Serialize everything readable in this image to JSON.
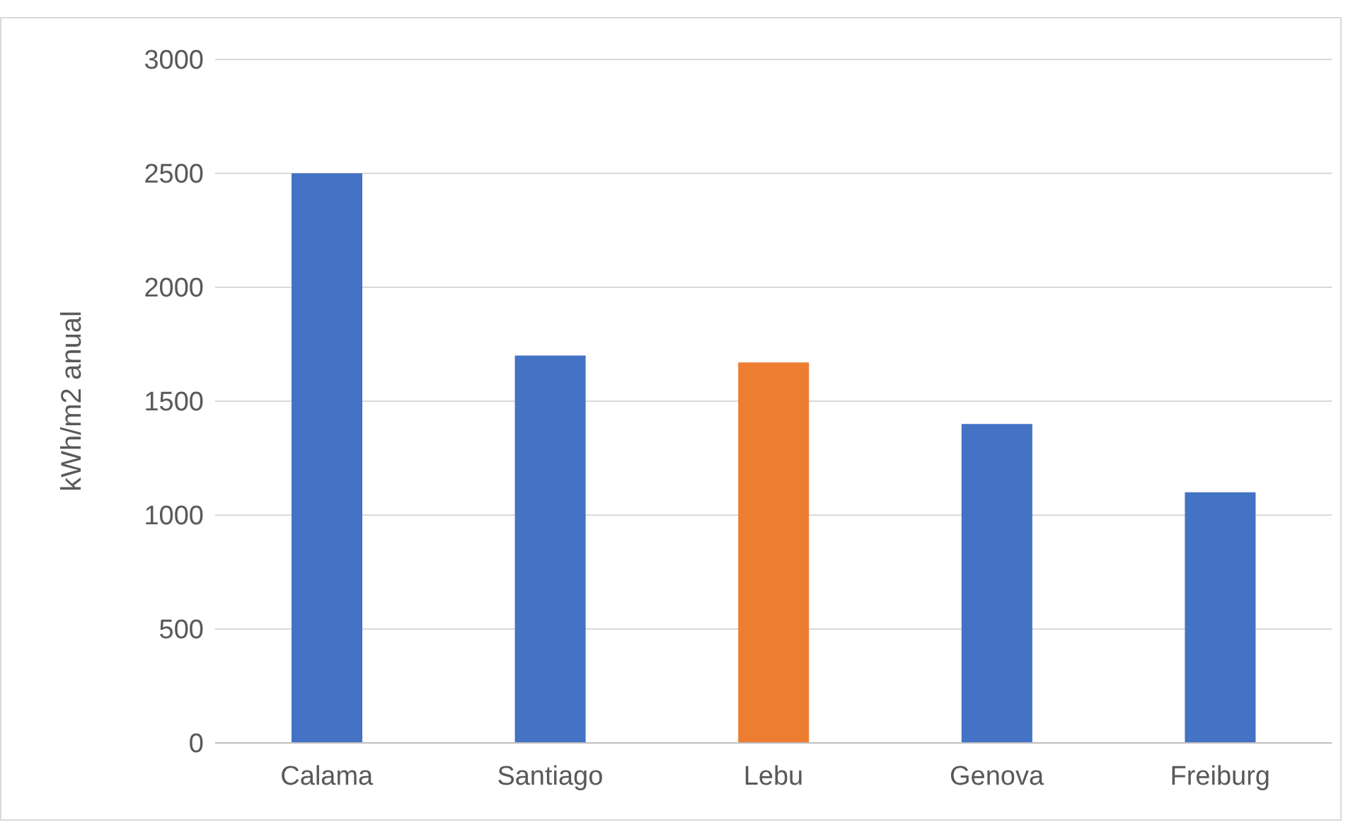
{
  "chart_data": {
    "type": "bar",
    "ylabel": "kWh/m2 anual",
    "categories": [
      "Calama",
      "Santiago",
      "Lebu",
      "Genova",
      "Freiburg"
    ],
    "values": [
      2500,
      1700,
      1670,
      1400,
      1100
    ],
    "colors": [
      "#4472c4",
      "#4472c4",
      "#ed7d31",
      "#4472c4",
      "#4472c4"
    ],
    "ylim": [
      0,
      3000
    ],
    "yticks": [
      0,
      500,
      1000,
      1500,
      2000,
      2500,
      3000
    ],
    "grid": "y"
  }
}
